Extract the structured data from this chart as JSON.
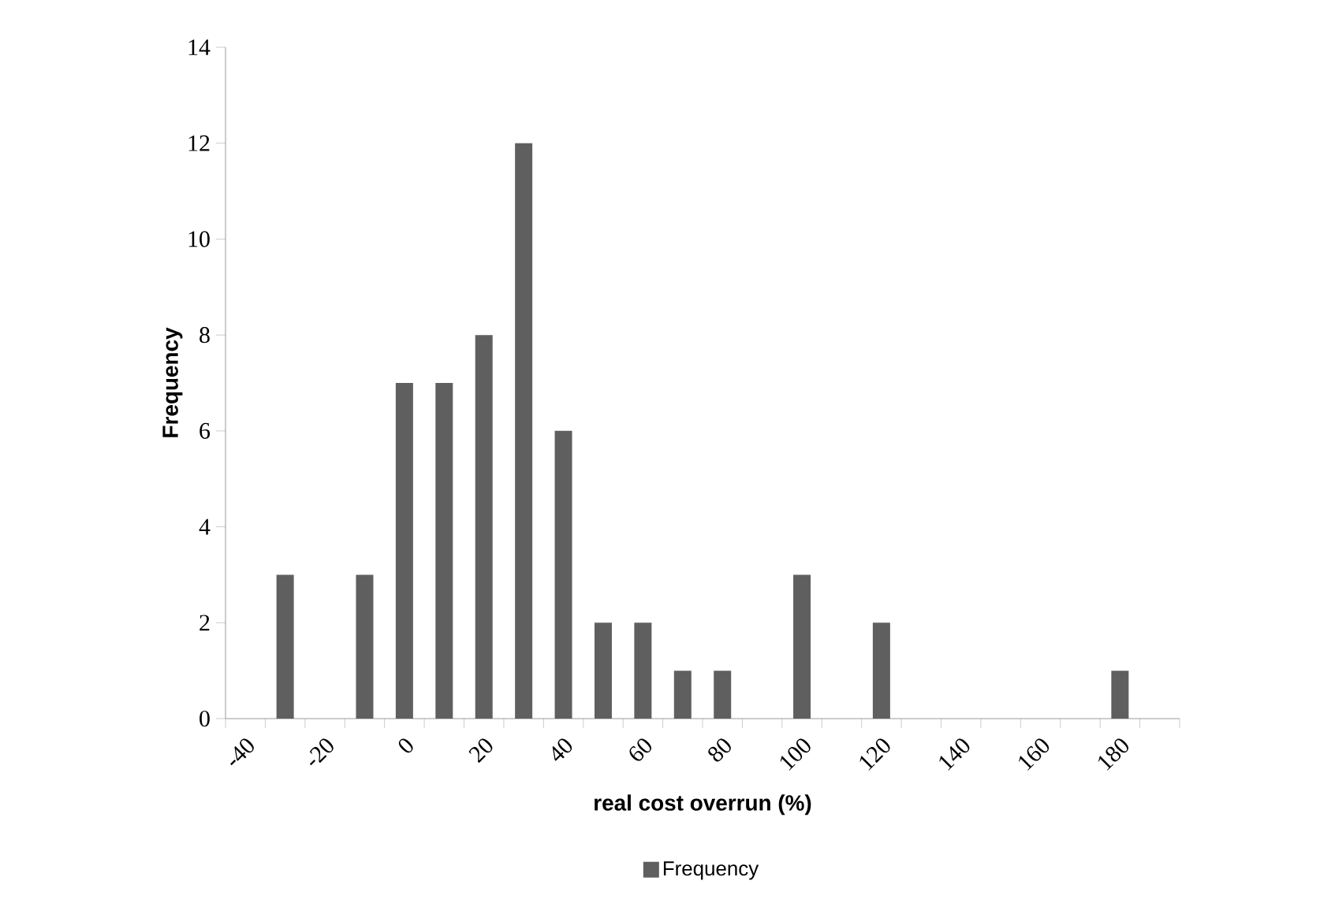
{
  "chart_data": {
    "type": "bar",
    "xlabel": "real cost overrun (%)",
    "ylabel": "Frequency",
    "categories": [
      "-40",
      null,
      "-20",
      null,
      "0",
      null,
      "20",
      null,
      "40",
      null,
      "60",
      null,
      "80",
      null,
      "100",
      null,
      "120",
      null,
      "140",
      null,
      "160",
      null,
      "180",
      null
    ],
    "series": [
      {
        "name": "Frequency",
        "color": "#5f5f5f",
        "values": [
          0,
          3,
          0,
          3,
          7,
          7,
          8,
          12,
          6,
          2,
          2,
          1,
          1,
          0,
          3,
          0,
          2,
          0,
          0,
          0,
          0,
          0,
          1,
          0
        ]
      }
    ],
    "ylim": [
      0,
      14
    ],
    "yticks": [
      0,
      2,
      4,
      6,
      8,
      10,
      12,
      14
    ],
    "grid": false,
    "legend": "bottom"
  }
}
